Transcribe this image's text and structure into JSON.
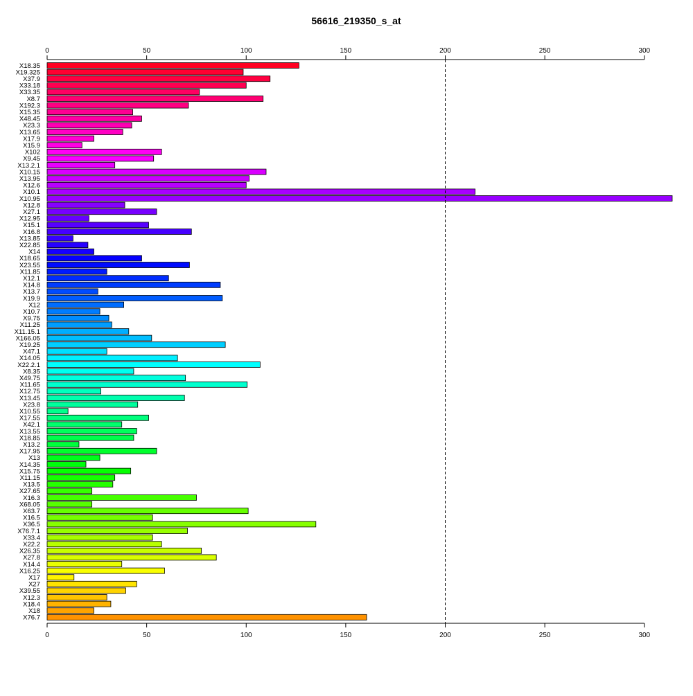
{
  "chart_data": {
    "type": "bar",
    "orientation": "horizontal",
    "title": "56616_219350_s_at",
    "xlabel": "",
    "ylabel": "",
    "xlim": [
      0,
      314
    ],
    "xticks": [
      0,
      50,
      100,
      150,
      200,
      250,
      300
    ],
    "reference_line": {
      "value": 200,
      "style": "dashed"
    },
    "grid": false,
    "categories": [
      "X18.35",
      "X19.325",
      "X37.9",
      "X33.18",
      "X33.35",
      "X8.7",
      "X192.3",
      "X15.35",
      "X48.45",
      "X23.3",
      "X13.65",
      "X17.9",
      "X15.9",
      "X102",
      "X9.45",
      "X13.2.1",
      "X10.15",
      "X13.95",
      "X12.6",
      "X10.1",
      "X10.95",
      "X12.8",
      "X27.1",
      "X12.95",
      "X15.1",
      "X16.8",
      "X13.85",
      "X22.85",
      "X14",
      "X18.65",
      "X23.55",
      "X11.85",
      "X12.1",
      "X14.8",
      "X13.7",
      "X19.9",
      "X12",
      "X10.7",
      "X9.75",
      "X11.25",
      "X11.15.1",
      "X166.05",
      "X19.25",
      "X47.1",
      "X14.05",
      "X22.2.1",
      "X8.35",
      "X49.75",
      "X11.65",
      "X12.75",
      "X13.45",
      "X23.8",
      "X10.55",
      "X17.55",
      "X42.1",
      "X13.55",
      "X18.85",
      "X13.2",
      "X17.95",
      "X13",
      "X14.35",
      "X15.75",
      "X11.15",
      "X13.5",
      "X27.65",
      "X16.3",
      "X68.05",
      "X63.7",
      "X16.5",
      "X36.5",
      "X76.7.1",
      "X33.4",
      "X22.2",
      "X26.35",
      "X27.8",
      "X14.4",
      "X16.25",
      "X17",
      "X27",
      "X39.55",
      "X12.3",
      "X18.4",
      "X18",
      "X76.7"
    ],
    "values": [
      126.5,
      98.5,
      112,
      100,
      76.5,
      108.5,
      71,
      43,
      47.5,
      42.5,
      38,
      23.5,
      17.5,
      57.5,
      53.5,
      34,
      110,
      101.5,
      100,
      215,
      314,
      39,
      55,
      21,
      51,
      72.5,
      13,
      20.5,
      23.5,
      47.5,
      71.5,
      30,
      61,
      87,
      25.5,
      88,
      38.5,
      26.5,
      31,
      32.5,
      41,
      52.5,
      89.5,
      30,
      65.5,
      107,
      43.5,
      69.5,
      100.5,
      27,
      69,
      45.5,
      10.5,
      51,
      37.5,
      45,
      43.5,
      16,
      55,
      26.5,
      19.5,
      42,
      34,
      33,
      22.5,
      75,
      22.5,
      101,
      53,
      135,
      70.5,
      53,
      57.5,
      77.5,
      85,
      37.5,
      59,
      13.5,
      45,
      39.5,
      30,
      32,
      23.5,
      160.5
    ],
    "colors": [
      "#ff0021",
      "#ff0031",
      "#ff0041",
      "#ff0051",
      "#ff0062",
      "#ff0072",
      "#ff0082",
      "#ff0092",
      "#ff00a3",
      "#ff00b3",
      "#ff00c3",
      "#ff00d3",
      "#ff00e4",
      "#ff00f4",
      "#f900ff",
      "#e900ff",
      "#d900ff",
      "#c800ff",
      "#b800ff",
      "#a800ff",
      "#9800ff",
      "#8700ff",
      "#7700ff",
      "#6700ff",
      "#5700ff",
      "#4600ff",
      "#3600ff",
      "#2600ff",
      "#1600ff",
      "#0500ff",
      "#000bff",
      "#001bff",
      "#002cff",
      "#003cff",
      "#004cff",
      "#005cff",
      "#006dff",
      "#007dff",
      "#008dff",
      "#009dff",
      "#00aeff",
      "#00beff",
      "#00ceff",
      "#00deff",
      "#00efff",
      "#00ffff",
      "#00ffef",
      "#00ffde",
      "#00ffce",
      "#00ffbe",
      "#00ffae",
      "#00ff9d",
      "#00ff8d",
      "#00ff7d",
      "#00ff6d",
      "#00ff5c",
      "#00ff4c",
      "#00ff3c",
      "#00ff2c",
      "#00ff1b",
      "#00ff0b",
      "#05ff00",
      "#16ff00",
      "#26ff00",
      "#36ff00",
      "#46ff00",
      "#57ff00",
      "#67ff00",
      "#77ff00",
      "#87ff00",
      "#98ff00",
      "#a8ff00",
      "#b8ff00",
      "#c8ff00",
      "#d9ff00",
      "#e9ff00",
      "#f9ff00",
      "#fff400",
      "#ffe400",
      "#ffd300",
      "#ffc300",
      "#ffb300",
      "#ffa300",
      "#ff9200"
    ],
    "axis_color": "#000000",
    "bar_border_color": "#000000"
  }
}
